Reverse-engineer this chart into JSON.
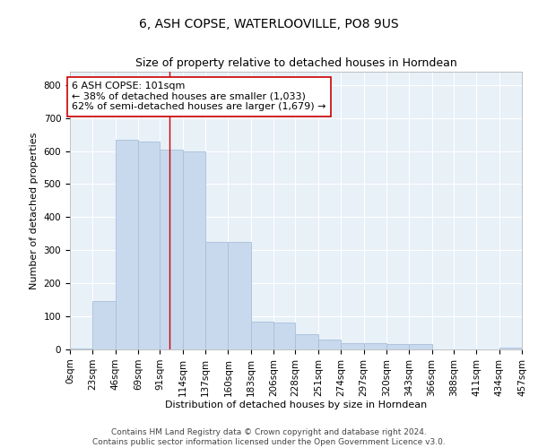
{
  "title": "6, ASH COPSE, WATERLOOVILLE, PO8 9US",
  "subtitle": "Size of property relative to detached houses in Horndean",
  "xlabel": "Distribution of detached houses by size in Horndean",
  "ylabel": "Number of detached properties",
  "bar_color": "#c8d9ee",
  "bar_edge_color": "#a8bfd8",
  "background_color": "#e8f0f8",
  "grid_color": "#ffffff",
  "vline_value": 101,
  "vline_color": "#cc0000",
  "bin_edges": [
    0,
    23,
    46,
    69,
    91,
    114,
    137,
    160,
    183,
    206,
    228,
    251,
    274,
    297,
    320,
    343,
    366,
    388,
    411,
    434,
    457
  ],
  "bin_labels": [
    "0sqm",
    "23sqm",
    "46sqm",
    "69sqm",
    "91sqm",
    "114sqm",
    "137sqm",
    "160sqm",
    "183sqm",
    "206sqm",
    "228sqm",
    "251sqm",
    "274sqm",
    "297sqm",
    "320sqm",
    "343sqm",
    "366sqm",
    "388sqm",
    "411sqm",
    "434sqm",
    "457sqm"
  ],
  "bar_heights": [
    3,
    145,
    635,
    630,
    605,
    600,
    325,
    325,
    85,
    80,
    45,
    30,
    20,
    18,
    15,
    15,
    0,
    0,
    0,
    5
  ],
  "ylim": [
    0,
    840
  ],
  "yticks": [
    0,
    100,
    200,
    300,
    400,
    500,
    600,
    700,
    800
  ],
  "annotation_text": "6 ASH COPSE: 101sqm\n← 38% of detached houses are smaller (1,033)\n62% of semi-detached houses are larger (1,679) →",
  "annotation_box_color": "#ffffff",
  "annotation_box_edge": "#cc0000",
  "footer_text": "Contains HM Land Registry data © Crown copyright and database right 2024.\nContains public sector information licensed under the Open Government Licence v3.0.",
  "title_fontsize": 10,
  "subtitle_fontsize": 9,
  "label_fontsize": 8,
  "tick_fontsize": 7.5,
  "annotation_fontsize": 8,
  "footer_fontsize": 6.5
}
